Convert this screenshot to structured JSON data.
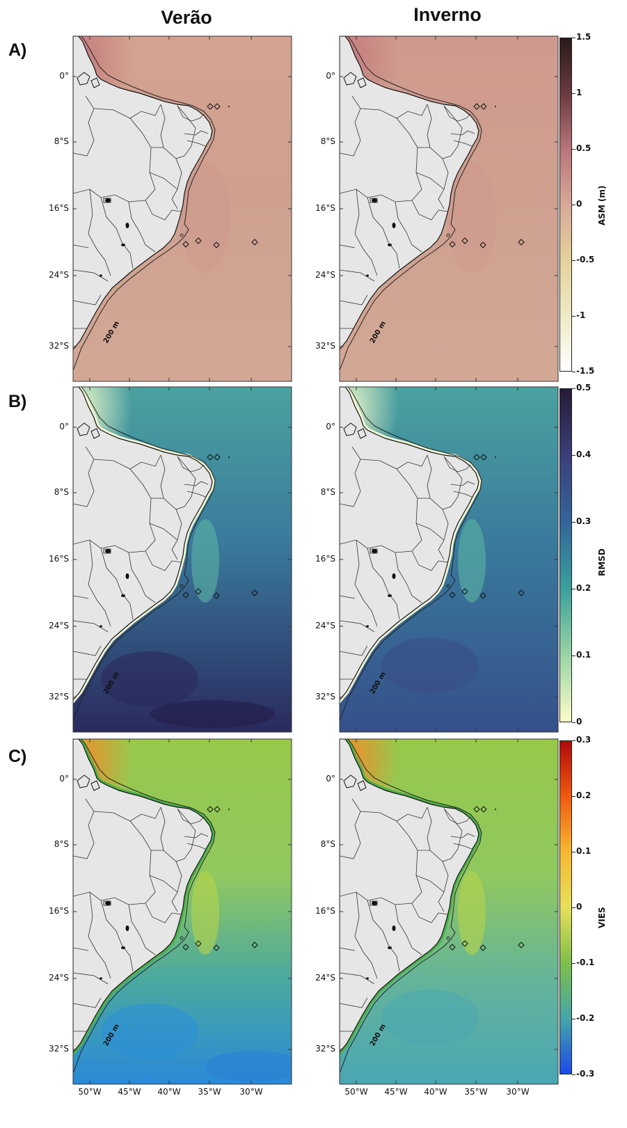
{
  "columns": [
    "Verão",
    "Inverno"
  ],
  "rows": [
    {
      "label": "A)",
      "variable": "ASM (m)",
      "colorbar": {
        "ticks": [
          "1.5",
          "1",
          "0.5",
          "0",
          "-0.5",
          "-1",
          "-1.5"
        ],
        "colors": [
          "#2a1a1a",
          "#6b3a40",
          "#b8757a",
          "#d8a898",
          "#e4d29c",
          "#eeeac4",
          "#ffffff"
        ]
      },
      "ocean": {
        "base": "#d2a895",
        "tint": "#cfa090",
        "coast": "#c47c7c"
      }
    },
    {
      "label": "B)",
      "variable": "RMSD",
      "colorbar": {
        "ticks": [
          "0.5",
          "0.4",
          "0.3",
          "0.2",
          "0.1",
          "0"
        ],
        "colors": [
          "#261a35",
          "#3b3f7a",
          "#33659a",
          "#3aa09c",
          "#9ad4a6",
          "#fdfcc8"
        ]
      },
      "ocean": {
        "north": "#4aa29f",
        "mid": "#3a7a9c",
        "south": "#2e3e72",
        "coast": "#e8f4c8"
      }
    },
    {
      "label": "C)",
      "variable": "VIES",
      "colorbar": {
        "ticks": [
          "0.3",
          "0.2",
          "0.1",
          "0",
          "-0.1",
          "-0.2",
          "-0.3"
        ],
        "colors": [
          "#b00a0a",
          "#f05a10",
          "#f5b832",
          "#e6e05a",
          "#7fbf4a",
          "#46a6a8",
          "#1a4ae8"
        ]
      },
      "ocean": {
        "north": "#98c84a",
        "mid": "#7cbf6a",
        "south": "#3aa0c8",
        "coast": "#f08c2c"
      }
    }
  ],
  "lat_labels": [
    "0°",
    "8°S",
    "16°S",
    "24°S",
    "32°S"
  ],
  "lon_labels": [
    "50°W",
    "45°W",
    "40°W",
    "35°W",
    "30°W"
  ],
  "isobath_label": "200 m"
}
